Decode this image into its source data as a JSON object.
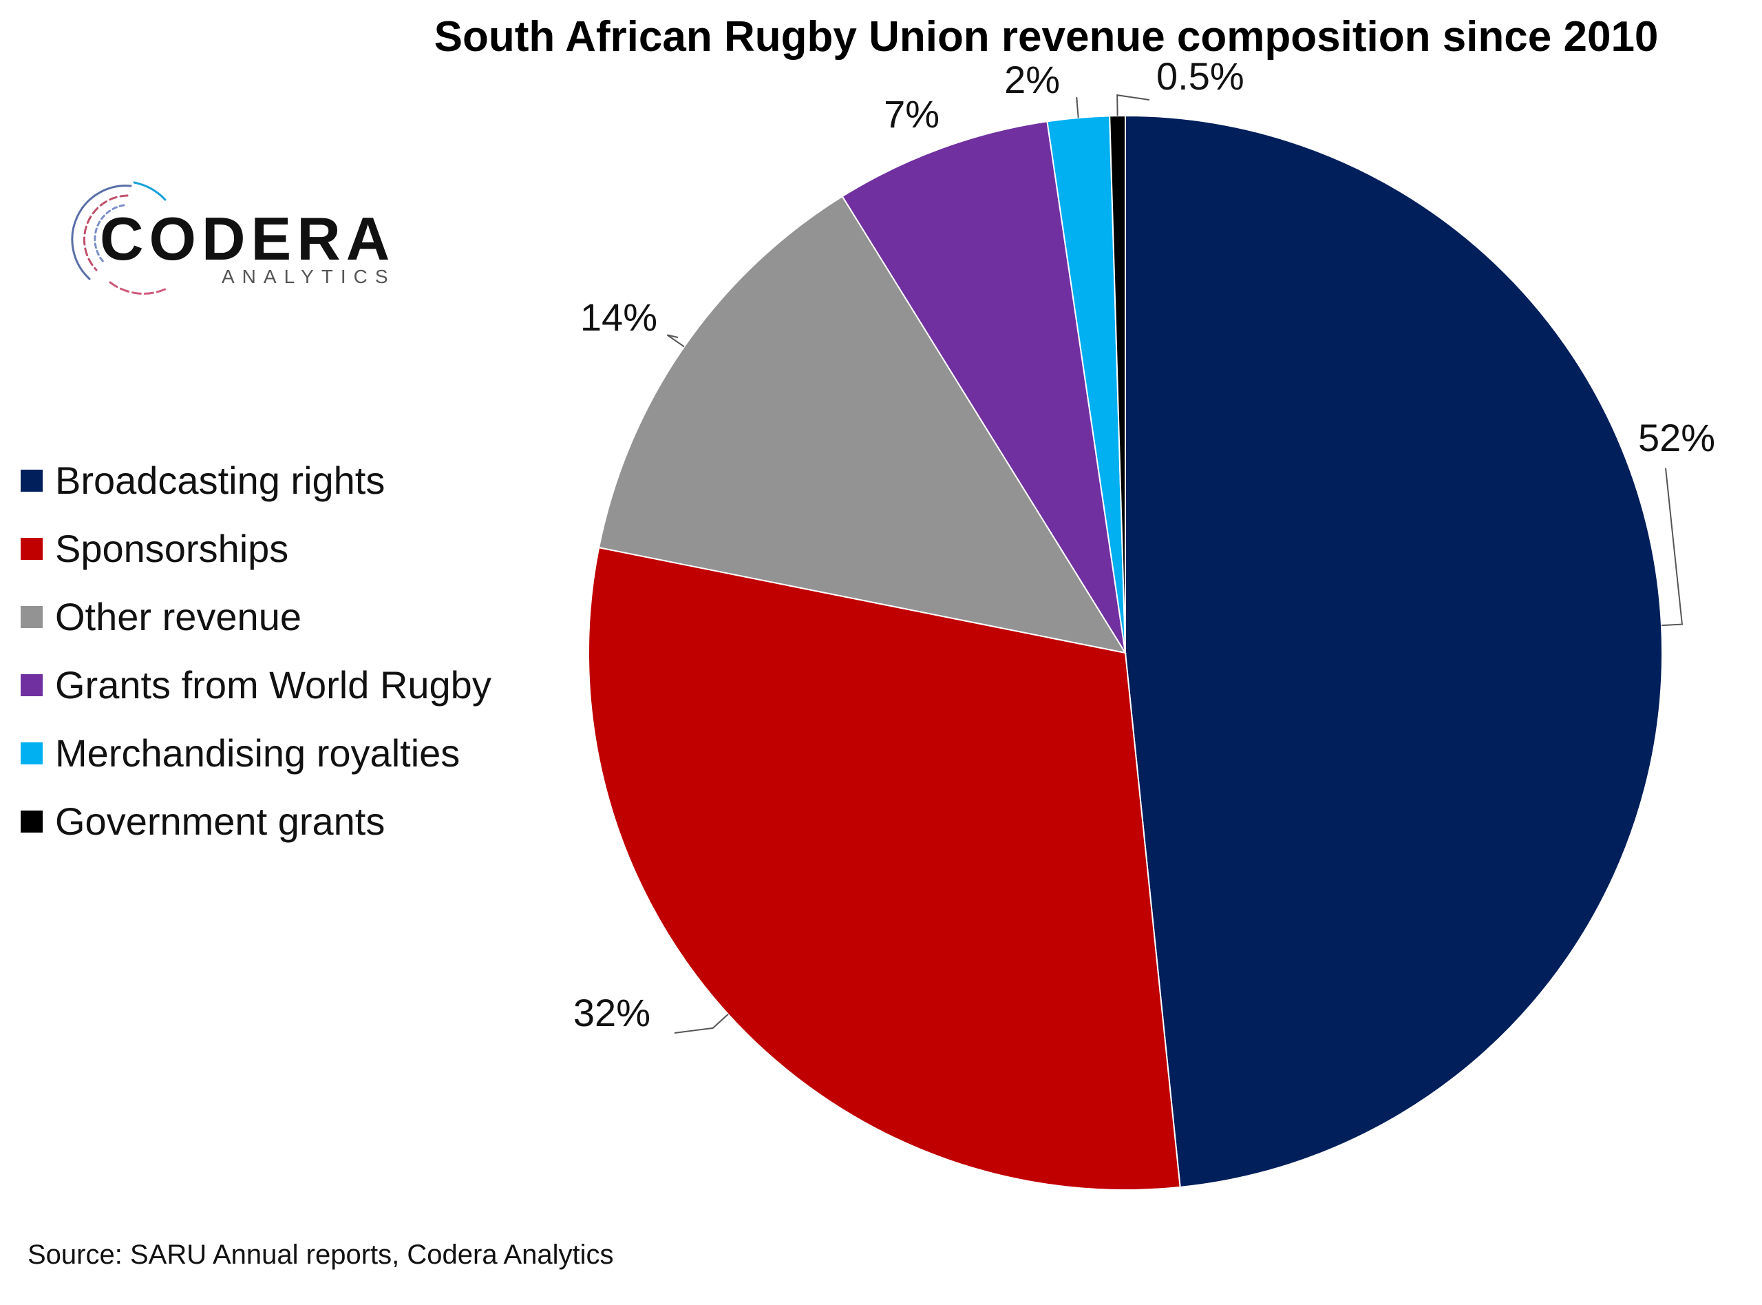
{
  "logo": {
    "name": "CODERA",
    "subtitle": "ANALYTICS"
  },
  "chart_data": {
    "type": "pie",
    "title": "South African Rugby Union revenue composition since 2010",
    "start_angle_deg": 0,
    "direction": "clockwise",
    "legend_position": "left",
    "slices": [
      {
        "name": "Broadcasting rights",
        "value": 52,
        "label": "52%",
        "color": "#001f5b"
      },
      {
        "name": "Sponsorships",
        "value": 32,
        "label": "32%",
        "color": "#c00000"
      },
      {
        "name": "Other revenue",
        "value": 14,
        "label": "14%",
        "color": "#939393"
      },
      {
        "name": "Grants from World Rugby",
        "value": 7,
        "label": "7%",
        "color": "#7030a0"
      },
      {
        "name": "Merchandising royalties",
        "value": 2,
        "label": "2%",
        "color": "#00b0f0"
      },
      {
        "name": "Government grants",
        "value": 0.5,
        "label": "0.5%",
        "color": "#000000"
      }
    ]
  },
  "source": "Source: SARU Annual reports, Codera Analytics"
}
